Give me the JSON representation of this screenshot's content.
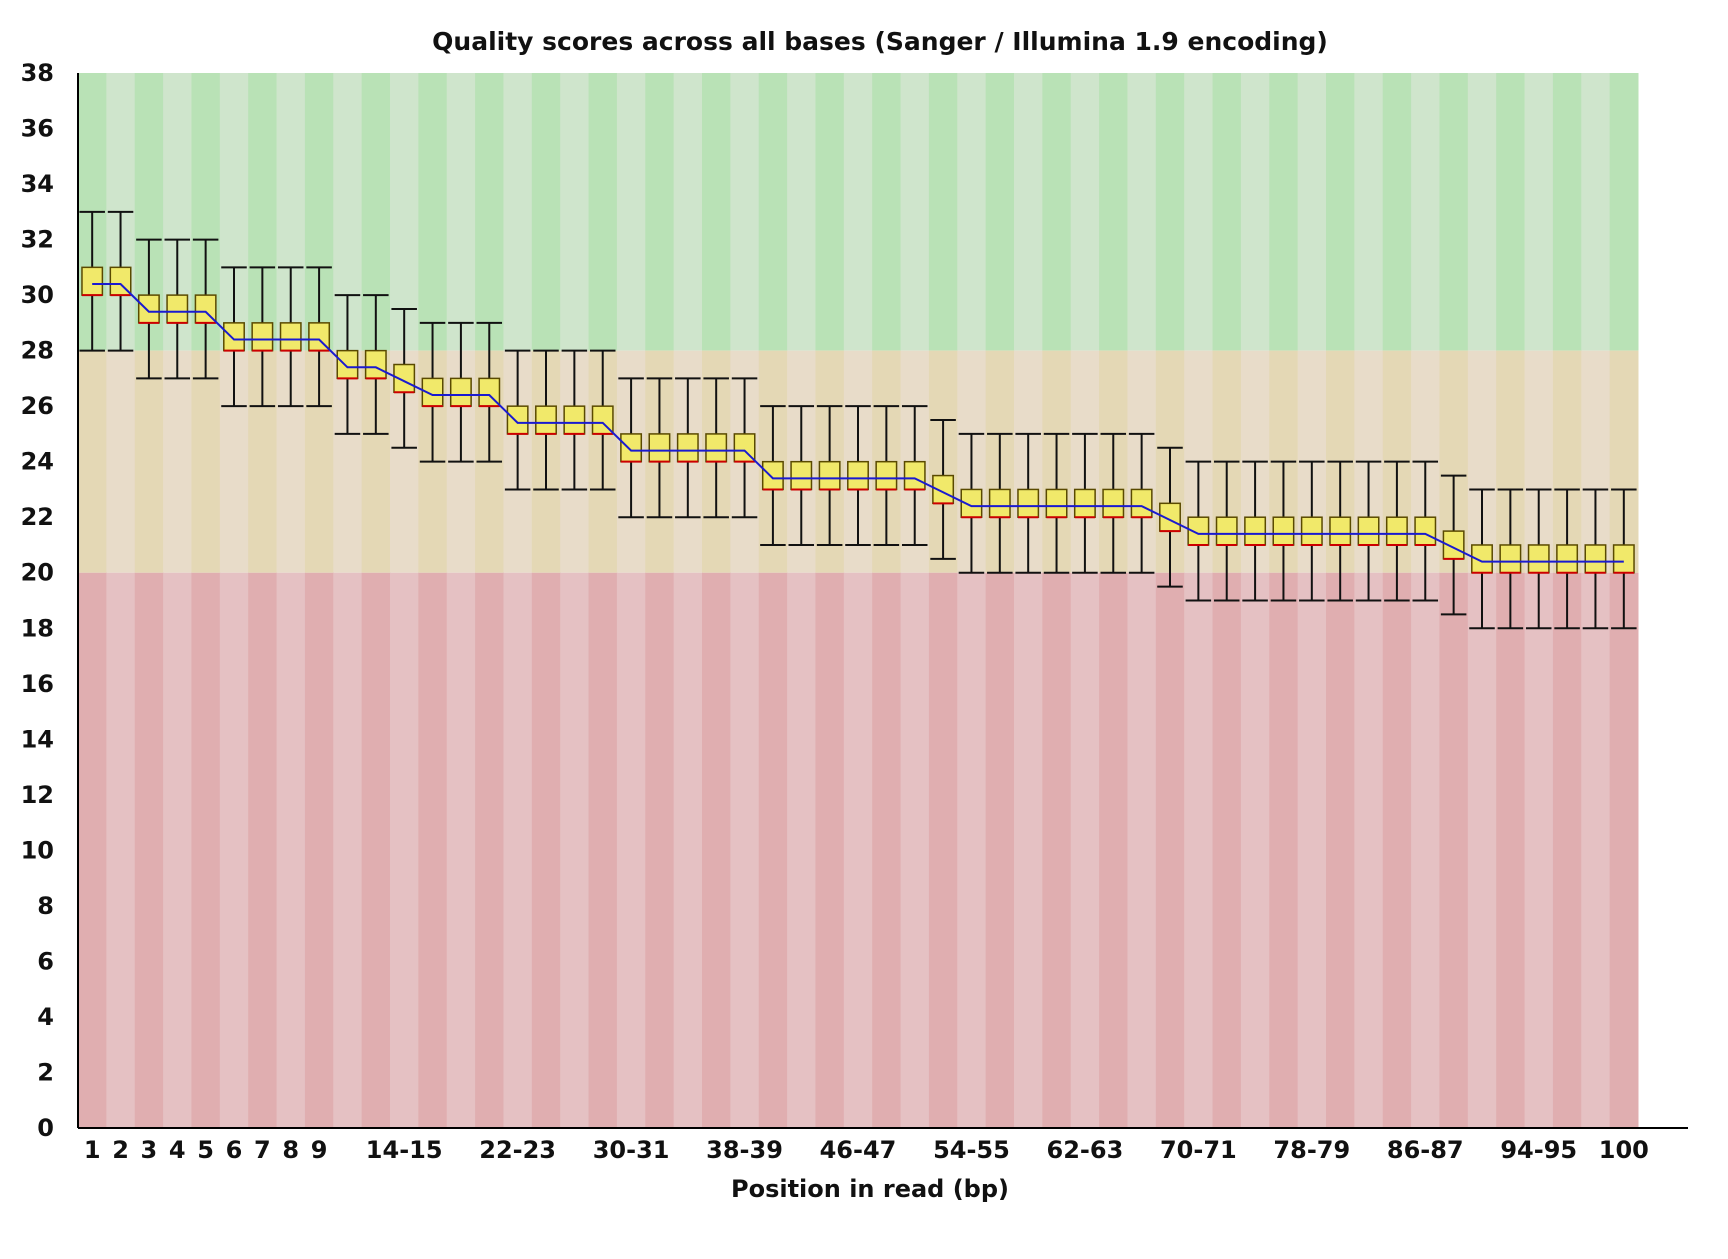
{
  "chart_data": {
    "type": "box",
    "title": "Quality scores across all bases (Sanger / Illumina 1.9 encoding)",
    "xlabel": "Position in read (bp)",
    "ylabel": "",
    "ylim": [
      0,
      38
    ],
    "yticks": [
      0,
      2,
      4,
      6,
      8,
      10,
      12,
      14,
      16,
      18,
      20,
      22,
      24,
      26,
      28,
      30,
      32,
      34,
      36,
      38
    ],
    "zones": [
      {
        "name": "good",
        "from": 28,
        "to": 38,
        "colors": [
          "#b9e2b6",
          "#cfe5cc"
        ]
      },
      {
        "name": "reasonable",
        "from": 20,
        "to": 28,
        "colors": [
          "#e4d8b5",
          "#e8dcc9"
        ]
      },
      {
        "name": "poor",
        "from": 0,
        "to": 20,
        "colors": [
          "#e0aeb0",
          "#e5c1c3"
        ]
      }
    ],
    "box_fill": "#f1e96a",
    "box_stroke": "#5a4a00",
    "median_color": "#cc0000",
    "mean_line_color": "#1a1ad0",
    "categories": [
      "1",
      "2",
      "3",
      "4",
      "5",
      "6",
      "7",
      "8",
      "9",
      "10-11",
      "12-13",
      "14-15",
      "16-17",
      "18-19",
      "20-21",
      "22-23",
      "24-25",
      "26-27",
      "28-29",
      "30-31",
      "32-33",
      "34-35",
      "36-37",
      "38-39",
      "40-41",
      "42-43",
      "44-45",
      "46-47",
      "48-49",
      "50-51",
      "52-53",
      "54-55",
      "56-57",
      "58-59",
      "60-61",
      "62-63",
      "64-65",
      "66-67",
      "68-69",
      "70-71",
      "72-73",
      "74-75",
      "76-77",
      "78-79",
      "80-81",
      "82-83",
      "84-85",
      "86-87",
      "88-89",
      "90-91",
      "92-93",
      "94-95",
      "96-97",
      "98-99",
      "100"
    ],
    "x_tick_labels": [
      "1",
      "2",
      "3",
      "4",
      "5",
      "6",
      "7",
      "8",
      "9",
      "14-15",
      "22-23",
      "30-31",
      "38-39",
      "46-47",
      "54-55",
      "62-63",
      "70-71",
      "78-79",
      "86-87",
      "94-95",
      "100"
    ],
    "boxes": {
      "whisker_low": [
        28,
        28,
        27,
        27,
        27,
        26,
        26,
        26,
        26,
        25,
        25,
        24.5,
        24,
        24,
        24,
        23,
        23,
        23,
        23,
        22,
        22,
        22,
        22,
        22,
        21,
        21,
        21,
        21,
        21,
        21,
        20.5,
        20,
        20,
        20,
        20,
        20,
        20,
        20,
        19.5,
        19,
        19,
        19,
        19,
        19,
        19,
        19,
        19,
        19,
        18.5,
        18,
        18,
        18,
        18,
        18,
        18
      ],
      "q1": [
        30,
        30,
        29,
        29,
        29,
        28,
        28,
        28,
        28,
        27,
        27,
        26.5,
        26,
        26,
        26,
        25,
        25,
        25,
        25,
        24,
        24,
        24,
        24,
        24,
        23,
        23,
        23,
        23,
        23,
        23,
        22.5,
        22,
        22,
        22,
        22,
        22,
        22,
        22,
        21.5,
        21,
        21,
        21,
        21,
        21,
        21,
        21,
        21,
        21,
        20.5,
        20,
        20,
        20,
        20,
        20,
        20
      ],
      "median": [
        30,
        30,
        29,
        29,
        29,
        28,
        28,
        28,
        28,
        27,
        27,
        26.5,
        26,
        26,
        26,
        25,
        25,
        25,
        25,
        24,
        24,
        24,
        24,
        24,
        23,
        23,
        23,
        23,
        23,
        23,
        22.5,
        22,
        22,
        22,
        22,
        22,
        22,
        22,
        21.5,
        21,
        21,
        21,
        21,
        21,
        21,
        21,
        21,
        21,
        20.5,
        20,
        20,
        20,
        20,
        20,
        20
      ],
      "q3": [
        31,
        31,
        30,
        30,
        30,
        29,
        29,
        29,
        29,
        28,
        28,
        27.5,
        27,
        27,
        27,
        26,
        26,
        26,
        26,
        25,
        25,
        25,
        25,
        25,
        24,
        24,
        24,
        24,
        24,
        24,
        23.5,
        23,
        23,
        23,
        23,
        23,
        23,
        23,
        22.5,
        22,
        22,
        22,
        22,
        22,
        22,
        22,
        22,
        22,
        21.5,
        21,
        21,
        21,
        21,
        21,
        21
      ],
      "whisker_high": [
        33,
        33,
        32,
        32,
        32,
        31,
        31,
        31,
        31,
        30,
        30,
        29.5,
        29,
        29,
        29,
        28,
        28,
        28,
        28,
        27,
        27,
        27,
        27,
        27,
        26,
        26,
        26,
        26,
        26,
        26,
        25.5,
        25,
        25,
        25,
        25,
        25,
        25,
        25,
        24.5,
        24,
        24,
        24,
        24,
        24,
        24,
        24,
        24,
        24,
        23.5,
        23,
        23,
        23,
        23,
        23,
        23
      ],
      "mean": [
        30.4,
        30.4,
        29.4,
        29.4,
        29.4,
        28.4,
        28.4,
        28.4,
        28.4,
        27.4,
        27.4,
        26.9,
        26.4,
        26.4,
        26.4,
        25.4,
        25.4,
        25.4,
        25.4,
        24.4,
        24.4,
        24.4,
        24.4,
        24.4,
        23.4,
        23.4,
        23.4,
        23.4,
        23.4,
        23.4,
        22.9,
        22.4,
        22.4,
        22.4,
        22.4,
        22.4,
        22.4,
        22.4,
        21.9,
        21.4,
        21.4,
        21.4,
        21.4,
        21.4,
        21.4,
        21.4,
        21.4,
        21.4,
        20.9,
        20.4,
        20.4,
        20.4,
        20.4,
        20.4,
        20.4
      ]
    }
  }
}
